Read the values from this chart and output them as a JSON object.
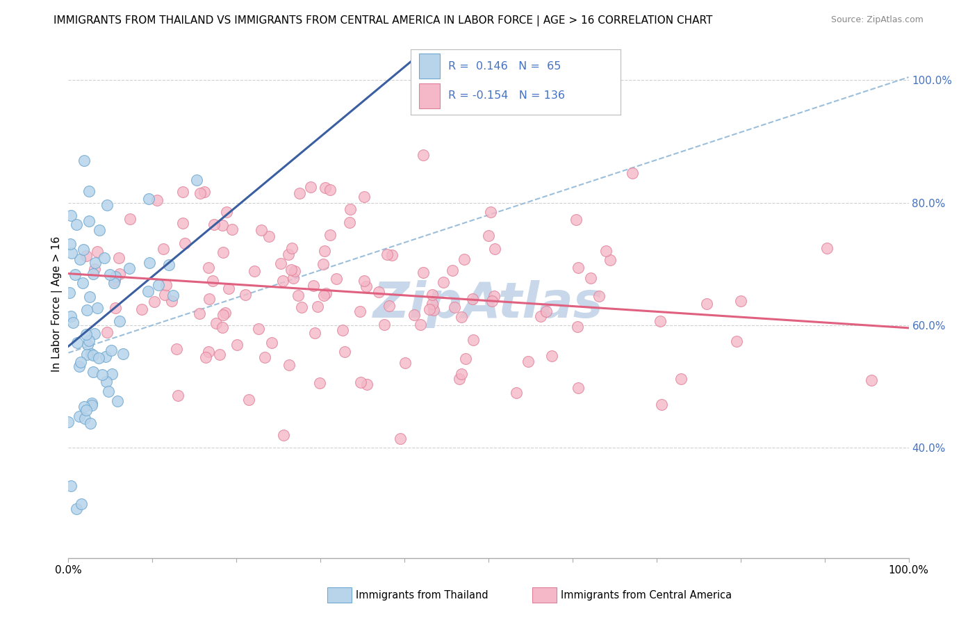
{
  "title": "IMMIGRANTS FROM THAILAND VS IMMIGRANTS FROM CENTRAL AMERICA IN LABOR FORCE | AGE > 16 CORRELATION CHART",
  "source": "Source: ZipAtlas.com",
  "ylabel": "In Labor Force | Age > 16",
  "color_thailand_fill": "#b8d4ea",
  "color_thailand_edge": "#6fa8d0",
  "color_central_fill": "#f4b8c8",
  "color_central_edge": "#e08098",
  "color_trend_blue": "#3a5fa0",
  "color_trend_pink": "#e06080",
  "color_dashed": "#90b8d8",
  "color_grid": "#d0d0d0",
  "color_legend_text": "#4472c4",
  "color_ytick": "#4472c4",
  "color_watermark": "#c8d8ea",
  "legend_text1": "R =  0.146   N =  65",
  "legend_text2": "R = -0.154   N = 136",
  "y_ticks": [
    0.4,
    0.6,
    0.8,
    1.0
  ],
  "y_tick_labels": [
    "40.0%",
    "60.0%",
    "80.0%",
    "100.0%"
  ]
}
